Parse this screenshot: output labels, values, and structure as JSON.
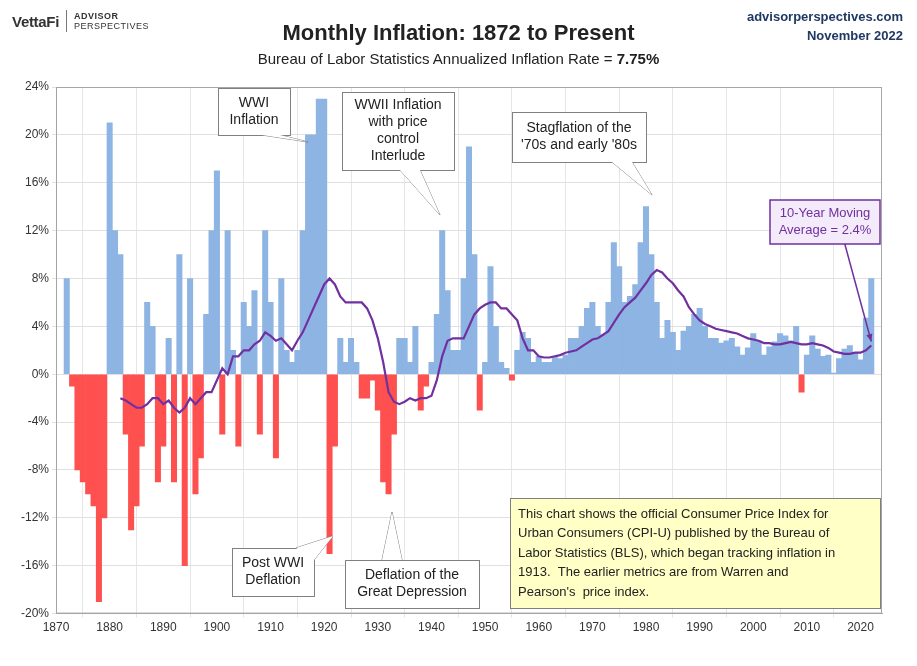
{
  "header": {
    "brand": "VettaFi",
    "brand_line1": "ADVISOR",
    "brand_line2": "PERSPECTIVES",
    "site": "advisorperspectives.com",
    "date": "November 2022"
  },
  "chart_data": {
    "type": "bar",
    "title": "Monthly Inflation: 1872 to Present",
    "subtitle": "Bureau of Labor Statistics Annualized Inflation Rate = 7.75%",
    "x": [
      1872,
      1873,
      1874,
      1875,
      1876,
      1877,
      1878,
      1879,
      1880,
      1881,
      1882,
      1883,
      1884,
      1885,
      1886,
      1887,
      1888,
      1889,
      1890,
      1891,
      1892,
      1893,
      1894,
      1895,
      1896,
      1897,
      1898,
      1899,
      1900,
      1901,
      1902,
      1903,
      1904,
      1905,
      1906,
      1907,
      1908,
      1909,
      1910,
      1911,
      1912,
      1913,
      1914,
      1915,
      1916,
      1917,
      1918,
      1919,
      1920,
      1921,
      1922,
      1923,
      1924,
      1925,
      1926,
      1927,
      1928,
      1929,
      1930,
      1931,
      1932,
      1933,
      1934,
      1935,
      1936,
      1937,
      1938,
      1939,
      1940,
      1941,
      1942,
      1943,
      1944,
      1945,
      1946,
      1947,
      1948,
      1949,
      1950,
      1951,
      1952,
      1953,
      1954,
      1955,
      1956,
      1957,
      1958,
      1959,
      1960,
      1961,
      1962,
      1963,
      1964,
      1965,
      1966,
      1967,
      1968,
      1969,
      1970,
      1971,
      1972,
      1973,
      1974,
      1975,
      1976,
      1977,
      1978,
      1979,
      1980,
      1981,
      1982,
      1983,
      1984,
      1985,
      1986,
      1987,
      1988,
      1989,
      1990,
      1991,
      1992,
      1993,
      1994,
      1995,
      1996,
      1997,
      1998,
      1999,
      2000,
      2001,
      2002,
      2003,
      2004,
      2005,
      2006,
      2007,
      2008,
      2009,
      2010,
      2011,
      2012,
      2013,
      2014,
      2015,
      2016,
      2017,
      2018,
      2019,
      2020,
      2021,
      2022
    ],
    "series": [
      {
        "type": "bar",
        "color": "#8db4e2",
        "values": [
          8,
          null,
          null,
          null,
          null,
          null,
          null,
          null,
          21,
          12,
          10,
          null,
          null,
          null,
          null,
          6,
          4,
          null,
          null,
          3,
          null,
          10,
          null,
          8,
          null,
          null,
          5,
          12,
          17,
          null,
          12,
          2,
          null,
          6,
          4,
          7,
          null,
          12,
          6,
          null,
          8,
          2,
          1,
          2,
          12,
          20,
          20,
          23,
          23,
          null,
          null,
          3,
          1,
          3,
          1,
          null,
          null,
          null,
          null,
          null,
          null,
          null,
          3,
          3,
          1,
          4,
          null,
          null,
          1,
          5,
          12,
          7,
          2,
          2,
          8,
          19,
          10,
          null,
          1,
          9,
          4,
          1,
          0.5,
          null,
          2,
          3.5,
          3,
          1,
          1.5,
          1,
          1,
          1.5,
          1.3,
          1.6,
          3,
          3,
          4,
          5.5,
          6,
          4,
          3.3,
          6,
          11,
          9,
          6,
          6.5,
          7.5,
          11,
          14,
          10,
          6,
          3,
          4.5,
          3.5,
          2,
          3.6,
          4,
          5,
          5.5,
          4,
          3,
          3,
          2.6,
          2.8,
          3,
          2.3,
          1.6,
          2.2,
          3.4,
          2.8,
          1.6,
          2.3,
          2.7,
          3.4,
          3.2,
          2.8,
          4,
          null,
          1.6,
          3.2,
          2.1,
          1.5,
          1.6,
          0.1,
          1.3,
          2.1,
          2.4,
          1.8,
          1.2,
          4.7,
          8
        ]
      },
      {
        "type": "bar",
        "color": "#ff5050",
        "values": [
          null,
          -1,
          -8,
          -9,
          -10,
          -11,
          -19,
          -12,
          null,
          null,
          null,
          -5,
          -13,
          -11,
          -6,
          null,
          null,
          -9,
          -6,
          null,
          -9,
          null,
          -16,
          null,
          -10,
          -7,
          null,
          null,
          null,
          -5,
          null,
          null,
          -6,
          null,
          null,
          null,
          -5,
          null,
          null,
          -7,
          null,
          null,
          null,
          null,
          null,
          null,
          null,
          null,
          null,
          -15,
          -6,
          null,
          null,
          null,
          null,
          -2,
          -2,
          -0.5,
          -3,
          -9,
          -10,
          -5,
          null,
          null,
          null,
          null,
          -3,
          -1,
          null,
          null,
          null,
          null,
          null,
          null,
          null,
          null,
          null,
          -3,
          null,
          null,
          null,
          null,
          null,
          -0.5,
          null,
          null,
          null,
          null,
          null,
          null,
          null,
          null,
          null,
          null,
          null,
          null,
          null,
          null,
          null,
          null,
          null,
          null,
          null,
          null,
          null,
          null,
          null,
          null,
          null,
          null,
          null,
          null,
          null,
          null,
          null,
          null,
          null,
          null,
          null,
          null,
          null,
          null,
          null,
          null,
          null,
          null,
          null,
          null,
          null,
          null,
          null,
          null,
          null,
          null,
          null,
          null,
          null,
          -1.5,
          null,
          null,
          null,
          null,
          null,
          null,
          null,
          null,
          null,
          null,
          null,
          null,
          null
        ]
      },
      {
        "type": "line",
        "name": "10-Year Moving Average",
        "color": "#7030a0",
        "values": [
          null,
          null,
          null,
          null,
          null,
          null,
          null,
          null,
          null,
          null,
          -2.0,
          -2.2,
          -2.5,
          -2.8,
          -2.8,
          -2.5,
          -2.0,
          -2.0,
          -2.5,
          -2.2,
          -2.8,
          -3.2,
          -2.8,
          -2.0,
          -2.5,
          -2.0,
          -1.5,
          -1.5,
          -0.5,
          0.5,
          0.0,
          1.5,
          1.5,
          2.0,
          2.0,
          2.5,
          2.8,
          3.5,
          3.2,
          2.8,
          3.0,
          2.5,
          2.0,
          2.8,
          3.5,
          4.5,
          5.5,
          6.5,
          7.5,
          8.0,
          7.5,
          6.5,
          6.0,
          6.0,
          6.0,
          6.0,
          5.5,
          4.5,
          3.0,
          1.0,
          -1.5,
          -2.3,
          -2.5,
          -2.3,
          -2.0,
          -2.2,
          -2.0,
          -2.0,
          -1.8,
          -0.5,
          1.5,
          2.8,
          3.0,
          3.0,
          3.0,
          4.0,
          5.0,
          5.5,
          5.8,
          6.0,
          6.0,
          5.5,
          5.5,
          5.0,
          4.5,
          3.0,
          2.0,
          2.0,
          1.5,
          1.4,
          1.4,
          1.5,
          1.6,
          1.8,
          1.9,
          2.0,
          2.3,
          2.6,
          2.9,
          3.0,
          3.3,
          3.6,
          4.3,
          5.0,
          5.6,
          6.0,
          6.4,
          7.0,
          7.6,
          8.3,
          8.7,
          8.5,
          8.0,
          7.6,
          7.0,
          6.5,
          5.6,
          5.0,
          4.5,
          4.2,
          4.0,
          3.8,
          3.7,
          3.6,
          3.5,
          3.4,
          3.2,
          3.0,
          2.9,
          2.8,
          2.6,
          2.6,
          2.5,
          2.5,
          2.6,
          2.7,
          2.6,
          2.5,
          2.5,
          2.6,
          2.5,
          2.4,
          2.2,
          1.9,
          1.8,
          1.7,
          1.7,
          1.8,
          1.8,
          2.0,
          2.4
        ]
      }
    ],
    "xlim": [
      1870,
      2024
    ],
    "xticks": [
      1870,
      1880,
      1890,
      1900,
      1910,
      1920,
      1930,
      1940,
      1950,
      1960,
      1970,
      1980,
      1990,
      2000,
      2010,
      2020
    ],
    "ylim": [
      -20,
      24
    ],
    "yticks": [
      {
        "value": -20,
        "label": "-20%"
      },
      {
        "value": -16,
        "label": "-16%"
      },
      {
        "value": -12,
        "label": "-12%"
      },
      {
        "value": -8,
        "label": "-8%"
      },
      {
        "value": -4,
        "label": "-4%"
      },
      {
        "value": 0,
        "label": "0%"
      },
      {
        "value": 4,
        "label": "4%"
      },
      {
        "value": 8,
        "label": "8%"
      },
      {
        "value": 12,
        "label": "12%"
      },
      {
        "value": 16,
        "label": "16%"
      },
      {
        "value": 20,
        "label": "20%"
      },
      {
        "value": 24,
        "label": "24%"
      }
    ],
    "grid": true,
    "annotations": [
      {
        "text": [
          "WWI",
          "Inflation"
        ]
      },
      {
        "text": [
          "WWII Inflation",
          "with price",
          "control",
          "Interlude"
        ]
      },
      {
        "text": [
          "Stagflation of the",
          "'70s and early '80s"
        ]
      },
      {
        "text": [
          "Post WWI",
          "Deflation"
        ]
      },
      {
        "text": [
          "Deflation of the",
          "Great Depression"
        ]
      },
      {
        "text": [
          "10-Year Moving",
          "Average = 2.4%"
        ]
      }
    ],
    "text_box": [
      "This chart shows the official Consumer Price Index for",
      "Urban Consumers (CPI-U) published by the Bureau of",
      "Labor Statistics (BLS), which began tracking inflation in",
      "1913.  The earlier metrics are from Warren and",
      "Pearson's  price index."
    ]
  }
}
